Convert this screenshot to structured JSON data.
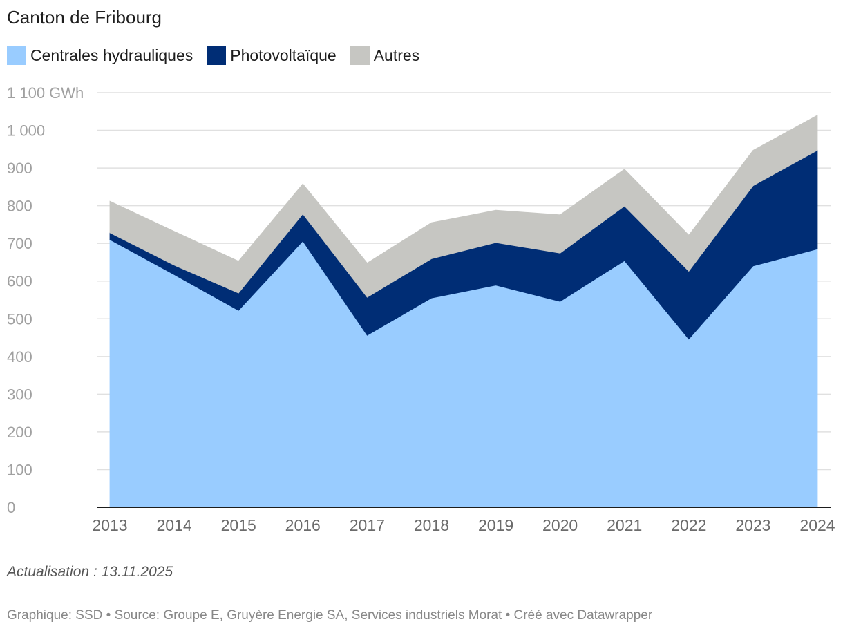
{
  "title": "Canton de Fribourg",
  "chart_data": {
    "type": "area",
    "stacked": true,
    "x": [
      "2013",
      "2014",
      "2015",
      "2016",
      "2017",
      "2018",
      "2019",
      "2020",
      "2021",
      "2022",
      "2023",
      "2024"
    ],
    "series": [
      {
        "name": "Centrales hydrauliques",
        "color": "#99ccff",
        "values": [
          710,
          617,
          522,
          706,
          456,
          555,
          589,
          546,
          654,
          446,
          640,
          685
        ]
      },
      {
        "name": "Photovoltaïque",
        "color": "#002d75",
        "values": [
          18,
          25,
          46,
          72,
          101,
          104,
          113,
          128,
          145,
          180,
          213,
          262
        ]
      },
      {
        "name": "Autres",
        "color": "#c6c6c2",
        "values": [
          84,
          90,
          85,
          80,
          91,
          96,
          86,
          102,
          98,
          96,
          94,
          93
        ]
      }
    ],
    "ylim": [
      0,
      1100
    ],
    "yticks": [
      {
        "value": 1100,
        "label": "1 100 GWh"
      },
      {
        "value": 1000,
        "label": "1 000"
      },
      {
        "value": 900,
        "label": "900"
      },
      {
        "value": 800,
        "label": "800"
      },
      {
        "value": 700,
        "label": "700"
      },
      {
        "value": 600,
        "label": "600"
      },
      {
        "value": 500,
        "label": "500"
      },
      {
        "value": 400,
        "label": "400"
      },
      {
        "value": 300,
        "label": "300"
      },
      {
        "value": 200,
        "label": "200"
      },
      {
        "value": 100,
        "label": "100"
      },
      {
        "value": 0,
        "label": "0"
      }
    ],
    "grid": true,
    "legend_position": "top-left"
  },
  "footer": {
    "note": "Actualisation : 13.11.2025",
    "source": "Graphique: SSD • Source: Groupe E, Gruyère Energie SA, Services industriels Morat • Créé avec Datawrapper"
  }
}
